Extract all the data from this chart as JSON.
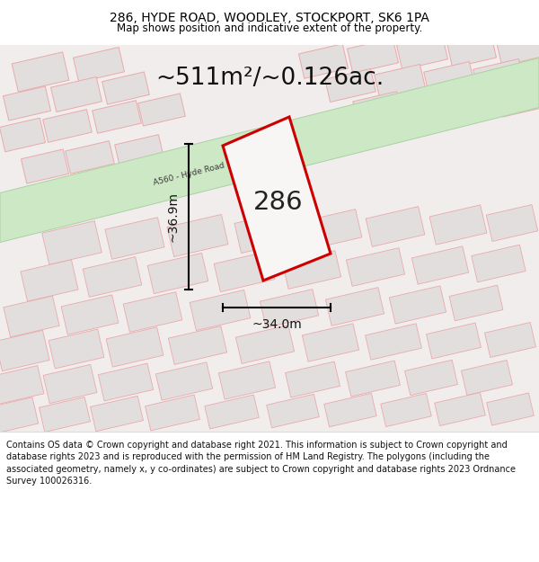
{
  "title": "286, HYDE ROAD, WOODLEY, STOCKPORT, SK6 1PA",
  "subtitle": "Map shows position and indicative extent of the property.",
  "area_text": "~511m²/~0.126ac.",
  "label_286": "286",
  "dim_width": "~34.0m",
  "dim_height": "~36.9m",
  "road_label": "A560 - Hyde Road",
  "footer_text": "Contains OS data © Crown copyright and database right 2021. This information is subject to Crown copyright and database rights 2023 and is reproduced with the permission of HM Land Registry. The polygons (including the associated geometry, namely x, y co-ordinates) are subject to Crown copyright and database rights 2023 Ordnance Survey 100026316.",
  "map_bg": "#f2eded",
  "road_green_fill": "#cde8c5",
  "road_green_edge": "#b0d4a8",
  "building_fill": "#e3dede",
  "building_edge": "#e8aaaa",
  "plot_edge": "#cc0000",
  "plot_fill": "#f8f5f5",
  "title_fontsize": 10,
  "subtitle_fontsize": 8.5,
  "area_fontsize": 19,
  "label_fontsize": 21,
  "dim_fontsize": 10,
  "footer_fontsize": 7
}
